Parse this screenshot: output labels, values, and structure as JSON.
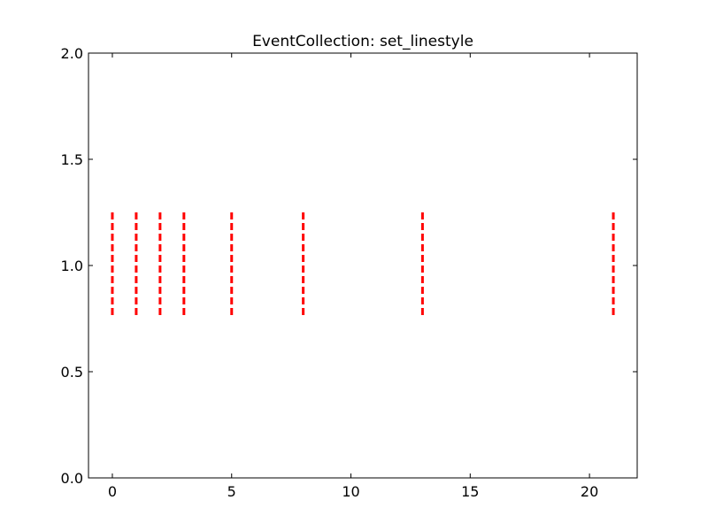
{
  "chart_data": {
    "type": "eventplot",
    "title": "EventCollection: set_linestyle",
    "xlabel": "",
    "ylabel": "",
    "xlim": [
      -1,
      22
    ],
    "ylim": [
      0.0,
      2.0
    ],
    "xticks": [
      0,
      5,
      10,
      15,
      20
    ],
    "xtick_labels": [
      "0",
      "5",
      "10",
      "15",
      "20"
    ],
    "yticks": [
      0.0,
      0.5,
      1.0,
      1.5,
      2.0
    ],
    "ytick_labels": [
      "0.0",
      "0.5",
      "1.0",
      "1.5",
      "2.0"
    ],
    "grid": false,
    "series": [
      {
        "positions": [
          0,
          1,
          2,
          3,
          5,
          8,
          13,
          21
        ],
        "lineoffset": 1.0,
        "linelength": 0.5,
        "linestyle": "dashed",
        "color": "#ff0000"
      }
    ]
  }
}
